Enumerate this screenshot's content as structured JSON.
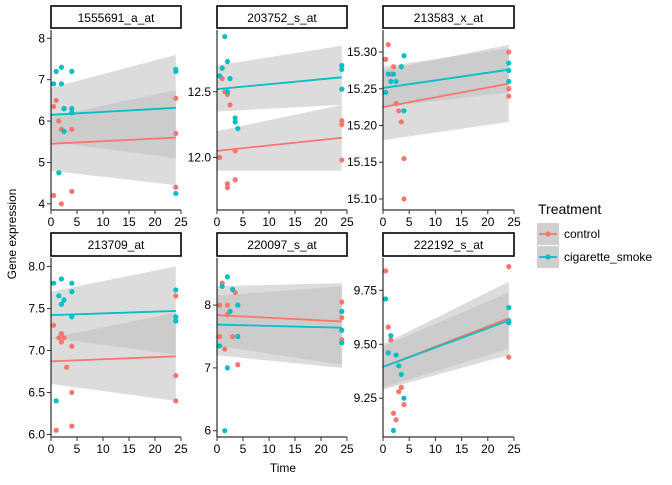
{
  "colors": {
    "control": "#F8766D",
    "cigarette_smoke": "#00BFC4",
    "ribbon": "#bfbfbf",
    "strip_bg": "#ffffff",
    "text": "#000000",
    "tick_text": "#4d4d4d"
  },
  "chart_data": {
    "type": "scatter",
    "xlabel": "Time",
    "ylabel": "Gene expression",
    "legend": {
      "title": "Treatment",
      "placement": "right",
      "entries": [
        {
          "key": "control",
          "label": "control"
        },
        {
          "key": "cigarette_smoke",
          "label": "cigarette_smoke"
        }
      ]
    },
    "xlim": [
      0,
      25
    ],
    "xticks": [
      0,
      5,
      10,
      15,
      20,
      25
    ],
    "facets": [
      {
        "title": "1555691_a_at",
        "ylim": [
          3.85,
          8.2
        ],
        "yticks": [
          4,
          5,
          6,
          7,
          8
        ],
        "fit": {
          "control": {
            "y0": 5.45,
            "y24": 5.6,
            "lo0": 4.8,
            "hi0": 6.1,
            "lo24": 4.45,
            "hi24": 6.75
          },
          "cigarette_smoke": {
            "y0": 6.15,
            "y24": 6.32,
            "lo0": 5.5,
            "hi0": 6.8,
            "lo24": 5.1,
            "hi24": 7.6
          }
        },
        "points": {
          "control": [
            [
              0.5,
              6.35
            ],
            [
              0.5,
              4.2
            ],
            [
              1,
              6.5
            ],
            [
              1.5,
              6.0
            ],
            [
              2,
              4.0
            ],
            [
              2,
              5.8
            ],
            [
              2.5,
              6.3
            ],
            [
              4,
              4.3
            ],
            [
              4,
              5.8
            ],
            [
              24,
              6.55
            ],
            [
              24,
              5.7
            ],
            [
              24,
              4.4
            ]
          ],
          "cigarette_smoke": [
            [
              0.5,
              6.9
            ],
            [
              1,
              7.2
            ],
            [
              1.5,
              4.75
            ],
            [
              2,
              7.3
            ],
            [
              2,
              6.9
            ],
            [
              2.5,
              6.3
            ],
            [
              2.5,
              5.75
            ],
            [
              4,
              7.2
            ],
            [
              4,
              6.3
            ],
            [
              4,
              6.2
            ],
            [
              24,
              7.25
            ],
            [
              24,
              7.2
            ],
            [
              24,
              4.25
            ]
          ]
        }
      },
      {
        "title": "203752_s_at",
        "ylim": [
          11.6,
          12.97
        ],
        "yticks": [
          12.0,
          12.5
        ],
        "ytick_labels": [
          "12.0",
          "12.5"
        ],
        "fit": {
          "control": {
            "y0": 12.05,
            "y24": 12.15,
            "lo0": 11.9,
            "hi0": 12.2,
            "lo24": 11.9,
            "hi24": 12.4
          },
          "cigarette_smoke": {
            "y0": 12.52,
            "y24": 12.61,
            "lo0": 12.35,
            "hi0": 12.7,
            "lo24": 12.4,
            "hi24": 12.85
          }
        },
        "points": {
          "control": [
            [
              0.5,
              12.0
            ],
            [
              1,
              12.6
            ],
            [
              1.5,
              12.5
            ],
            [
              2,
              11.8
            ],
            [
              2,
              11.77
            ],
            [
              2,
              12.48
            ],
            [
              2.5,
              12.4
            ],
            [
              3.5,
              12.05
            ],
            [
              3.5,
              11.83
            ],
            [
              24,
              12.28
            ],
            [
              24,
              12.25
            ],
            [
              24,
              11.98
            ]
          ],
          "cigarette_smoke": [
            [
              0.5,
              12.62
            ],
            [
              1,
              12.68
            ],
            [
              1.5,
              12.92
            ],
            [
              2,
              12.73
            ],
            [
              2,
              12.5
            ],
            [
              2.5,
              12.6
            ],
            [
              3.5,
              12.3
            ],
            [
              3.5,
              12.27
            ],
            [
              4,
              12.22
            ],
            [
              24,
              12.7
            ],
            [
              24,
              12.67
            ],
            [
              24,
              12.52
            ]
          ]
        }
      },
      {
        "title": "213583_x_at",
        "ylim": [
          15.085,
          15.33
        ],
        "yticks": [
          15.1,
          15.15,
          15.2,
          15.25,
          15.3
        ],
        "ytick_labels": [
          "15.10",
          "15.15",
          "15.20",
          "15.25",
          "15.30"
        ],
        "fit": {
          "control": {
            "y0": 15.225,
            "y24": 15.257,
            "lo0": 15.18,
            "hi0": 15.275,
            "lo24": 15.205,
            "hi24": 15.31
          },
          "cigarette_smoke": {
            "y0": 15.251,
            "y24": 15.276,
            "lo0": 15.225,
            "hi0": 15.28,
            "lo24": 15.245,
            "hi24": 15.305
          }
        },
        "points": {
          "control": [
            [
              0.5,
              15.29
            ],
            [
              1,
              15.31
            ],
            [
              1.5,
              15.27
            ],
            [
              2,
              15.28
            ],
            [
              2.5,
              15.23
            ],
            [
              3,
              15.22
            ],
            [
              3.5,
              15.205
            ],
            [
              4,
              15.155
            ],
            [
              4,
              15.1
            ],
            [
              24,
              15.3
            ],
            [
              24,
              15.25
            ],
            [
              24,
              15.24
            ]
          ],
          "cigarette_smoke": [
            [
              0.5,
              15.245
            ],
            [
              1,
              15.27
            ],
            [
              1.5,
              15.26
            ],
            [
              2,
              15.27
            ],
            [
              2.5,
              15.26
            ],
            [
              3.5,
              15.28
            ],
            [
              4,
              15.295
            ],
            [
              4,
              15.22
            ],
            [
              24,
              15.285
            ],
            [
              24,
              15.275
            ],
            [
              24,
              15.26
            ]
          ]
        }
      },
      {
        "title": "213709_at",
        "ylim": [
          5.97,
          8.1
        ],
        "yticks": [
          6.0,
          6.5,
          7.0,
          7.5,
          8.0
        ],
        "ytick_labels": [
          "6.0",
          "6.5",
          "7.0",
          "7.5",
          "8.0"
        ],
        "fit": {
          "control": {
            "y0": 6.87,
            "y24": 6.93,
            "lo0": 6.6,
            "hi0": 7.15,
            "lo24": 6.4,
            "hi24": 7.45
          },
          "cigarette_smoke": {
            "y0": 7.42,
            "y24": 7.47,
            "lo0": 7.15,
            "hi0": 7.7,
            "lo24": 6.95,
            "hi24": 8.0
          }
        },
        "points": {
          "control": [
            [
              0.5,
              7.3
            ],
            [
              1,
              6.05
            ],
            [
              1.5,
              7.15
            ],
            [
              2,
              7.1
            ],
            [
              2,
              7.2
            ],
            [
              2.5,
              7.15
            ],
            [
              3,
              6.8
            ],
            [
              4,
              7.05
            ],
            [
              4,
              6.5
            ],
            [
              4,
              6.1
            ],
            [
              24,
              7.65
            ],
            [
              24,
              6.7
            ],
            [
              24,
              6.4
            ]
          ],
          "cigarette_smoke": [
            [
              0.5,
              7.8
            ],
            [
              1,
              6.4
            ],
            [
              1.5,
              7.65
            ],
            [
              2,
              7.85
            ],
            [
              2,
              7.55
            ],
            [
              2.5,
              7.6
            ],
            [
              4,
              7.8
            ],
            [
              4,
              7.7
            ],
            [
              4,
              7.4
            ],
            [
              24,
              7.72
            ],
            [
              24,
              7.4
            ],
            [
              24,
              7.35
            ]
          ]
        }
      },
      {
        "title": "220097_s_at",
        "ylim": [
          5.9,
          8.75
        ],
        "yticks": [
          6,
          7,
          8
        ],
        "fit": {
          "control": {
            "y0": 7.84,
            "y24": 7.74,
            "lo0": 7.35,
            "hi0": 8.3,
            "lo24": 7.05,
            "hi24": 8.35
          },
          "cigarette_smoke": {
            "y0": 7.69,
            "y24": 7.64,
            "lo0": 7.2,
            "hi0": 8.15,
            "lo24": 7.0,
            "hi24": 8.3
          }
        },
        "points": {
          "control": [
            [
              0.5,
              8.0
            ],
            [
              0.5,
              7.5
            ],
            [
              1,
              8.35
            ],
            [
              1.5,
              7.3
            ],
            [
              2,
              8.0
            ],
            [
              2,
              7.85
            ],
            [
              3,
              7.5
            ],
            [
              3.5,
              8.2
            ],
            [
              4,
              7.05
            ],
            [
              24,
              8.05
            ],
            [
              24,
              7.8
            ],
            [
              24,
              7.45
            ]
          ],
          "cigarette_smoke": [
            [
              0.5,
              7.35
            ],
            [
              1,
              8.3
            ],
            [
              1.5,
              6.0
            ],
            [
              2,
              8.45
            ],
            [
              2,
              7.0
            ],
            [
              2.5,
              7.9
            ],
            [
              3,
              8.25
            ],
            [
              4,
              8.0
            ],
            [
              4,
              7.5
            ],
            [
              24,
              7.9
            ],
            [
              24,
              7.6
            ],
            [
              24,
              7.4
            ]
          ]
        }
      },
      {
        "title": "222192_s_at",
        "ylim": [
          9.07,
          9.9
        ],
        "yticks": [
          9.25,
          9.5,
          9.75
        ],
        "ytick_labels": [
          "9.25",
          "9.50",
          "9.75"
        ],
        "fit": {
          "control": {
            "y0": 9.395,
            "y24": 9.62,
            "lo0": 9.29,
            "hi0": 9.5,
            "lo24": 9.45,
            "hi24": 9.79
          },
          "cigarette_smoke": {
            "y0": 9.395,
            "y24": 9.61,
            "lo0": 9.3,
            "hi0": 9.49,
            "lo24": 9.48,
            "hi24": 9.74
          }
        },
        "points": {
          "control": [
            [
              0.5,
              9.84
            ],
            [
              1,
              9.58
            ],
            [
              1.5,
              9.52
            ],
            [
              2,
              9.18
            ],
            [
              2.5,
              9.15
            ],
            [
              3,
              9.28
            ],
            [
              3.5,
              9.3
            ],
            [
              4,
              9.22
            ],
            [
              24,
              9.86
            ],
            [
              24,
              9.6
            ],
            [
              24,
              9.44
            ]
          ],
          "cigarette_smoke": [
            [
              0.5,
              9.71
            ],
            [
              1,
              9.46
            ],
            [
              1.5,
              9.54
            ],
            [
              2,
              9.1
            ],
            [
              2.5,
              9.45
            ],
            [
              3,
              9.4
            ],
            [
              3.5,
              9.36
            ],
            [
              4,
              9.25
            ],
            [
              24,
              9.67
            ],
            [
              24,
              9.6
            ],
            [
              24,
              9.61
            ]
          ]
        }
      }
    ]
  }
}
